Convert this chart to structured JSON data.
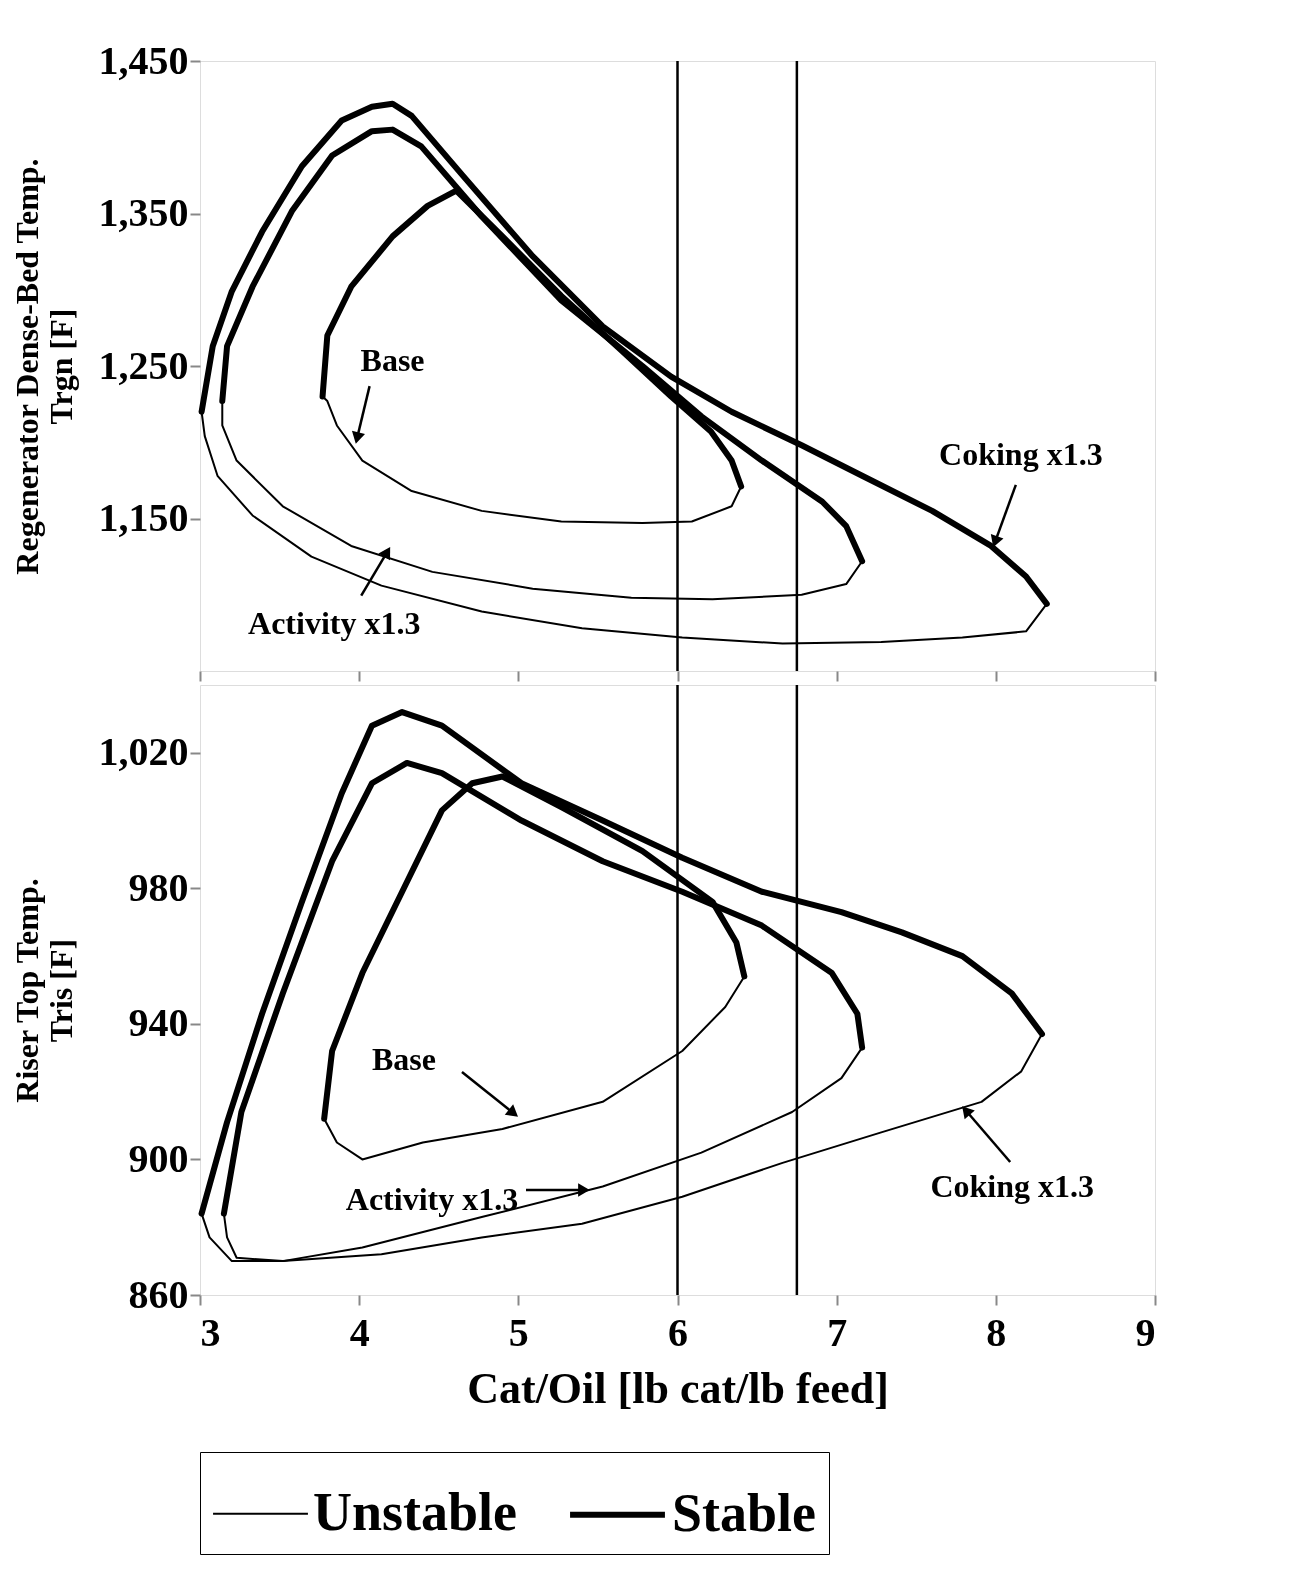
{
  "chart_data": [
    {
      "type": "line",
      "ylabel": "Regenerator Dense-Bed Temp.\nTrgn [F]",
      "xlim": [
        3,
        9
      ],
      "xticks": [
        3,
        4,
        5,
        6,
        7,
        8,
        9
      ],
      "ylim": [
        1050,
        1450
      ],
      "yticks": [
        {
          "value": 1450,
          "label": "1,450"
        },
        {
          "value": 1350,
          "label": "1,350"
        },
        {
          "value": 1250,
          "label": "1,250"
        },
        {
          "value": 1150,
          "label": "1,150"
        }
      ],
      "tick_labels": "y",
      "grid": false,
      "legend": "bottom",
      "line_style": "solid",
      "marker": "none",
      "series": [
        {
          "name": "Unstable",
          "color": "#000000",
          "x": [
            8.32,
            8.19,
            7.79,
            7.28,
            6.66,
            6.03,
            5.4,
            4.77,
            4.14,
            3.7,
            3.33,
            3.11,
            3.03,
            3.01,
            null,
            7.16,
            7.06,
            6.78,
            6.22,
            5.71,
            5.09,
            4.46,
            3.95,
            3.52,
            3.23,
            3.14,
            3.14,
            null,
            6.4,
            6.34,
            6.09,
            5.78,
            5.27,
            4.77,
            4.33,
            4.02,
            3.86,
            3.8,
            3.77
          ],
          "values": [
            1094,
            1076,
            1072,
            1069,
            1068,
            1072,
            1078,
            1089,
            1106,
            1125,
            1152,
            1178,
            1204,
            1220,
            null,
            1122,
            1107,
            1100,
            1097,
            1098,
            1104,
            1115,
            1132,
            1158,
            1188,
            1211,
            1227,
            null,
            1171,
            1158,
            1148,
            1147,
            1148,
            1155,
            1168,
            1188,
            1211,
            1227,
            1230
          ]
        },
        {
          "name": "Stable",
          "color": "#000000",
          "x": [
            3.01,
            3.08,
            3.2,
            3.39,
            3.64,
            3.89,
            4.08,
            4.21,
            4.33,
            4.65,
            5.09,
            5.53,
            5.96,
            6.34,
            6.78,
            7.16,
            7.6,
            7.97,
            8.19,
            8.32,
            null,
            3.14,
            3.17,
            3.33,
            3.58,
            3.83,
            4.08,
            4.21,
            4.39,
            4.77,
            5.27,
            5.78,
            6.15,
            6.53,
            6.91,
            7.06,
            7.16,
            null,
            3.77,
            3.8,
            3.95,
            4.21,
            4.43,
            4.61,
            4.9,
            5.27,
            5.65,
            5.96,
            6.21,
            6.34,
            6.4
          ],
          "values": [
            1220,
            1263,
            1299,
            1338,
            1381,
            1411,
            1420,
            1422,
            1414,
            1375,
            1322,
            1276,
            1243,
            1220,
            1198,
            1178,
            1155,
            1132,
            1112,
            1094,
            null,
            1227,
            1263,
            1302,
            1352,
            1388,
            1404,
            1405,
            1394,
            1348,
            1293,
            1250,
            1217,
            1188,
            1161,
            1145,
            1122,
            null,
            1230,
            1270,
            1302,
            1335,
            1355,
            1365,
            1335,
            1296,
            1260,
            1230,
            1207,
            1188,
            1171
          ]
        }
      ],
      "ref_lines": [
        {
          "axis": "x",
          "value": 6
        },
        {
          "axis": "x",
          "value": 6.75
        }
      ],
      "annotations": [
        {
          "text": "Base",
          "x": 3.99,
          "y": 1204
        },
        {
          "text": "Activity x1.3",
          "x": 4.17,
          "y": 1127
        },
        {
          "text": "Coking x1.3",
          "x": 8.0,
          "y": 1136
        }
      ]
    },
    {
      "type": "line",
      "xlabel": "Cat/Oil [lb cat/lb feed]",
      "ylabel": "Riser Top Temp.\nTris [F]",
      "xlim": [
        3,
        9
      ],
      "xticks": [
        3,
        4,
        5,
        6,
        7,
        8,
        9
      ],
      "ylim": [
        860,
        1040
      ],
      "yticks": [
        {
          "value": 1020,
          "label": "1,020"
        },
        980,
        940,
        900,
        860
      ],
      "grid": false,
      "legend": "bottom",
      "line_style": "solid",
      "marker": "none",
      "series": [
        {
          "name": "Unstable",
          "color": "#000000",
          "x": [
            8.29,
            8.16,
            7.91,
            7.28,
            6.66,
            6.03,
            5.4,
            4.77,
            4.14,
            3.52,
            3.2,
            3.06,
            3.01,
            null,
            7.16,
            7.03,
            6.72,
            6.15,
            5.53,
            4.77,
            4.02,
            3.52,
            3.23,
            3.17,
            3.15,
            null,
            6.42,
            6.3,
            6.03,
            5.53,
            4.9,
            4.4,
            4.02,
            3.86,
            3.78
          ],
          "values": [
            937,
            926,
            917,
            908,
            899,
            889,
            881,
            877,
            872,
            870,
            870,
            877,
            884,
            null,
            933,
            924,
            914,
            902,
            892,
            883,
            874,
            870,
            871,
            877,
            884,
            null,
            954,
            945,
            932,
            917,
            909,
            905,
            900,
            905,
            912
          ]
        },
        {
          "name": "Stable",
          "color": "#000000",
          "x": [
            3.01,
            3.17,
            3.39,
            3.64,
            3.89,
            4.08,
            4.27,
            4.52,
            5.02,
            5.53,
            6.03,
            6.53,
            7.03,
            7.41,
            7.79,
            8.1,
            8.29,
            null,
            3.15,
            3.26,
            3.52,
            3.83,
            4.08,
            4.3,
            4.52,
            5.02,
            5.53,
            6.03,
            6.53,
            6.97,
            7.13,
            7.16,
            null,
            3.78,
            3.83,
            4.02,
            4.27,
            4.52,
            4.71,
            4.9,
            5.27,
            5.78,
            6.22,
            6.37,
            6.42
          ],
          "values": [
            884,
            911,
            943,
            976,
            1008,
            1028,
            1032,
            1028,
            1011,
            1000,
            989,
            979,
            973,
            967,
            960,
            949,
            937,
            null,
            884,
            914,
            949,
            988,
            1011,
            1017,
            1014,
            1000,
            988,
            979,
            969,
            955,
            943,
            933,
            null,
            912,
            932,
            955,
            979,
            1003,
            1011,
            1013,
            1004,
            991,
            976,
            964,
            954
          ]
        }
      ],
      "ref_lines": [
        {
          "axis": "x",
          "value": 6
        },
        {
          "axis": "x",
          "value": 6.75
        }
      ],
      "annotations": [
        {
          "text": "Base",
          "x": 4.96,
          "y": 914
        },
        {
          "text": "Activity x1.3",
          "x": 5.4,
          "y": 891
        },
        {
          "text": "Coking x1.3",
          "x": 7.82,
          "y": 914
        }
      ]
    }
  ]
}
